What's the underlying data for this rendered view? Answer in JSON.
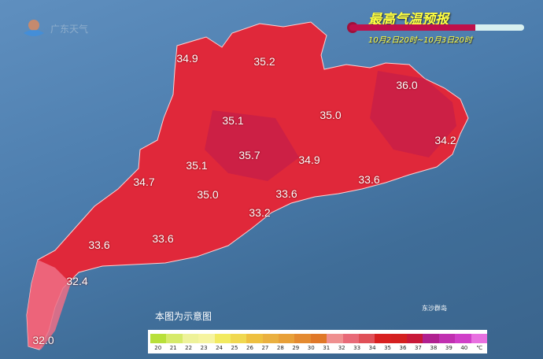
{
  "header": {
    "title": "最高气温预报",
    "period": "10月2日20时~10月3日20时",
    "logo_text": "广东天气"
  },
  "note": "本图为示意图",
  "island_label": "东沙群岛",
  "values": [
    {
      "v": "34.9",
      "p": [
        238,
        74
      ]
    },
    {
      "v": "35.2",
      "p": [
        336,
        78
      ]
    },
    {
      "v": "36.0",
      "p": [
        517,
        108
      ]
    },
    {
      "v": "35.1",
      "p": [
        296,
        153
      ]
    },
    {
      "v": "35.0",
      "p": [
        420,
        146
      ]
    },
    {
      "v": "35.7",
      "p": [
        317,
        197
      ]
    },
    {
      "v": "35.1",
      "p": [
        250,
        210
      ]
    },
    {
      "v": "34.9",
      "p": [
        393,
        203
      ]
    },
    {
      "v": "34.2",
      "p": [
        566,
        178
      ]
    },
    {
      "v": "34.7",
      "p": [
        183,
        231
      ]
    },
    {
      "v": "35.0",
      "p": [
        264,
        247
      ]
    },
    {
      "v": "33.6",
      "p": [
        364,
        246
      ]
    },
    {
      "v": "33.6",
      "p": [
        469,
        228
      ]
    },
    {
      "v": "33.2",
      "p": [
        330,
        270
      ]
    },
    {
      "v": "33.6",
      "p": [
        126,
        311
      ]
    },
    {
      "v": "33.6",
      "p": [
        207,
        303
      ]
    },
    {
      "v": "32.4",
      "p": [
        98,
        357
      ]
    },
    {
      "v": "32.0",
      "p": [
        55,
        432
      ]
    }
  ],
  "legend": {
    "unit": "℃",
    "labels": [
      "20",
      "21",
      "22",
      "23",
      "24",
      "25",
      "26",
      "27",
      "28",
      "29",
      "30",
      "31",
      "32",
      "33",
      "34",
      "35",
      "36",
      "37",
      "38",
      "39",
      "40"
    ],
    "colors": [
      "#b8e03a",
      "#d6ea6a",
      "#eef29a",
      "#f6f4a0",
      "#f2ea60",
      "#f0d850",
      "#eec040",
      "#eab040",
      "#e8a038",
      "#e48a30",
      "#e07828",
      "#ef9090",
      "#e86a78",
      "#e05058",
      "#d82020",
      "#d42020",
      "#c81838",
      "#b02090",
      "#c030b0",
      "#d040c8",
      "#e870e0"
    ]
  }
}
